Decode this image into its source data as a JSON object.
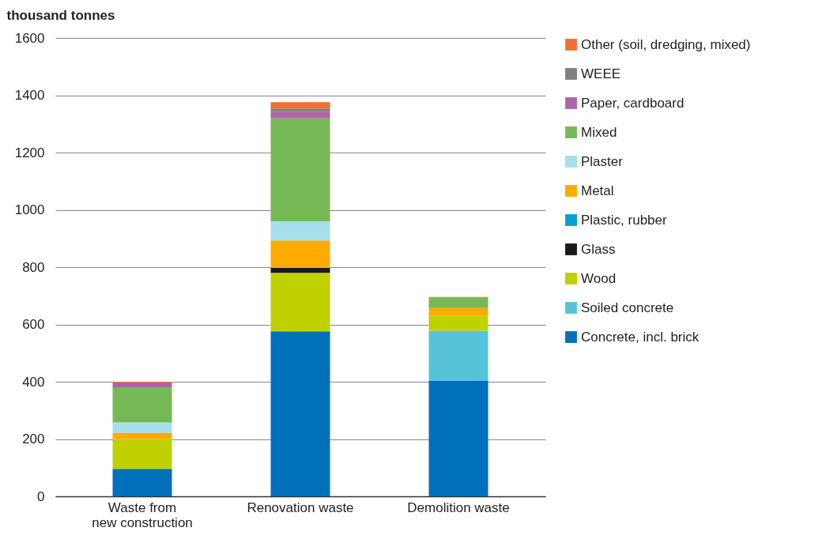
{
  "chart_data": {
    "type": "bar",
    "stacked": true,
    "ylabel": "thousand tonnes",
    "categories": [
      "Waste from new construction",
      "Renovation waste",
      "Demolition waste"
    ],
    "series": [
      {
        "name": "Concrete, incl. brick",
        "color": "#0070bb",
        "values": [
          96,
          576,
          404
        ]
      },
      {
        "name": "Soiled concrete",
        "color": "#57c3d9",
        "values": [
          0,
          0,
          174
        ]
      },
      {
        "name": "Wood",
        "color": "#bfd200",
        "values": [
          105,
          204,
          53
        ]
      },
      {
        "name": "Glass",
        "color": "#1a1a1a",
        "values": [
          0,
          17,
          0
        ]
      },
      {
        "name": "Plastic, rubber",
        "color": "#00a0d8",
        "values": [
          0,
          0,
          0
        ]
      },
      {
        "name": "Metal",
        "color": "#fdab00",
        "values": [
          21,
          96,
          26
        ]
      },
      {
        "name": "Plaster",
        "color": "#a5dfec",
        "values": [
          36,
          67,
          0
        ]
      },
      {
        "name": "Mixed",
        "color": "#76b856",
        "values": [
          123,
          359,
          36
        ]
      },
      {
        "name": "Paper, cardboard",
        "color": "#b064a6",
        "values": [
          16,
          24,
          0
        ]
      },
      {
        "name": "WEEE",
        "color": "#808080",
        "values": [
          0,
          11,
          0
        ]
      },
      {
        "name": "Other (soil, dredging, mixed)",
        "color": "#ee7032",
        "values": [
          3,
          22,
          3
        ]
      }
    ],
    "ylim": [
      0,
      1600
    ],
    "yticks": [
      0,
      200,
      400,
      600,
      800,
      1000,
      1200,
      1400,
      1600
    ],
    "grid": "y",
    "legend": "right"
  }
}
